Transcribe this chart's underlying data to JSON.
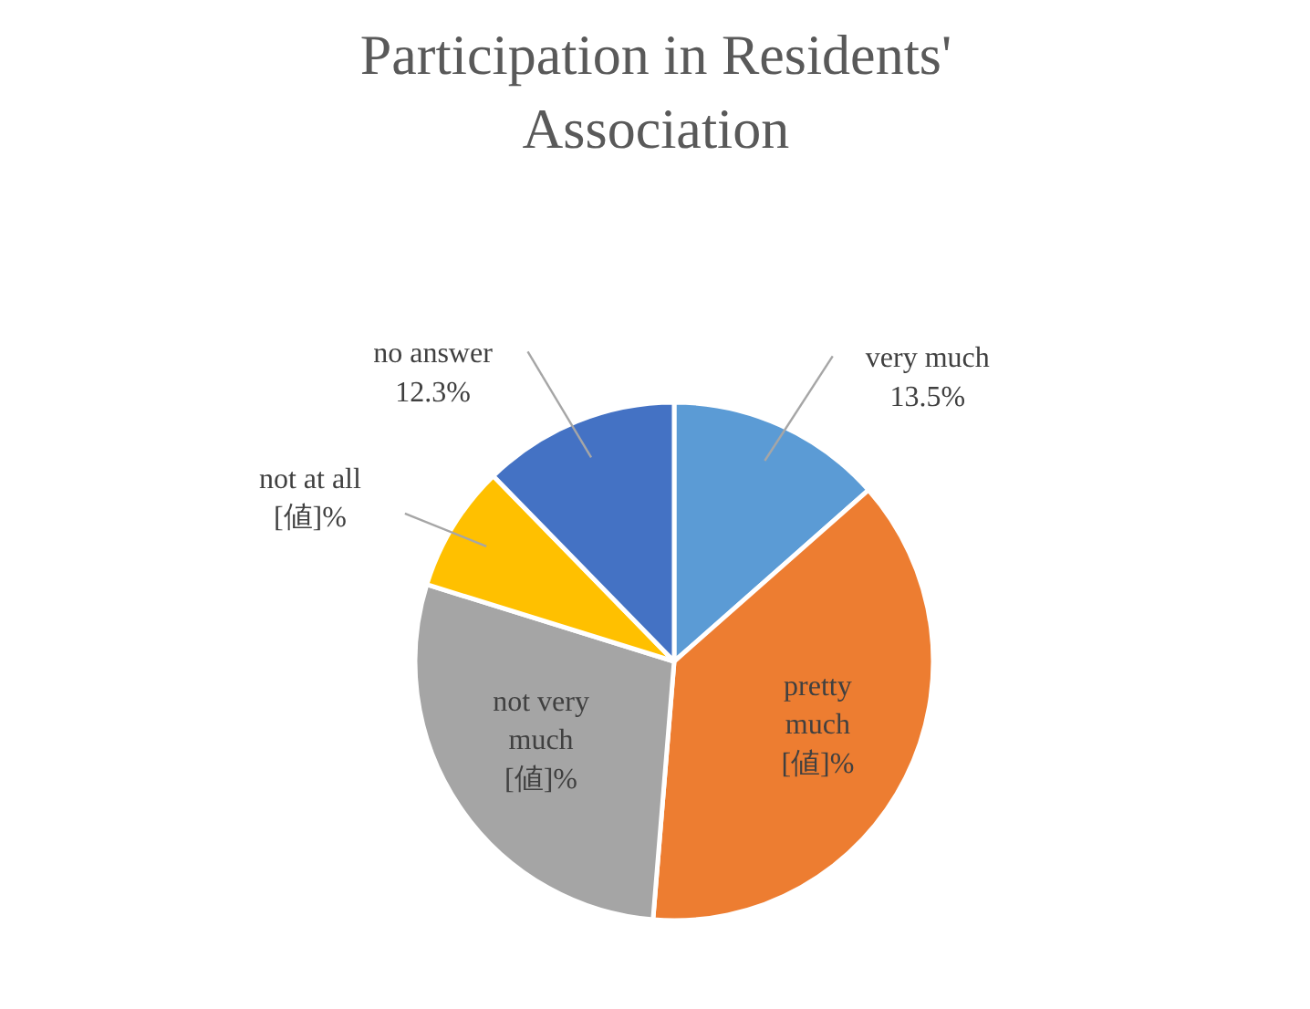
{
  "chart_data": {
    "type": "pie",
    "title": "Participation in Residents' Association",
    "categories": [
      "very much",
      "pretty much",
      "not very much",
      "not at all",
      "no answer"
    ],
    "values": [
      13.5,
      37.8,
      28.5,
      7.9,
      12.3
    ],
    "colors": [
      "#5b9bd5",
      "#ed7d31",
      "#a5a5a5",
      "#ffc000",
      "#4472c4"
    ],
    "value_labels": [
      "13.5%",
      "[値]%",
      "[値]%",
      "[値]%",
      "12.3%"
    ],
    "legend": false
  }
}
